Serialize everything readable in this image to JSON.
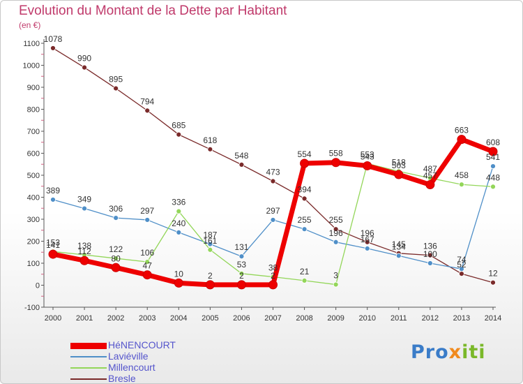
{
  "title": "Evolution du Montant de la Dette par Habitant",
  "subtitle": "(en €)",
  "logo": {
    "text": "Proxiti"
  },
  "colors": {
    "HéNENCOURT": "#ee0000",
    "Laviéville": "#4f8fc8",
    "Millencourt": "#93d659",
    "Bresle": "#7a2a2a",
    "title": "#c03a6b",
    "legend_text": "#5555cc"
  },
  "chart_data": {
    "type": "line",
    "title": "Evolution du Montant de la Dette par Habitant",
    "ylabel": "(en €)",
    "x": [
      "2000",
      "2001",
      "2002",
      "2003",
      "2004",
      "2005",
      "2006",
      "2007",
      "2008",
      "2009",
      "2010",
      "2011",
      "2012",
      "2013",
      "2014"
    ],
    "ylim": [
      -100,
      1100
    ],
    "yticks": [
      -100,
      0,
      100,
      200,
      300,
      400,
      500,
      600,
      700,
      800,
      900,
      1000,
      1100
    ],
    "grid": false,
    "legend": "bottom-left",
    "series": [
      {
        "name": "HéNENCOURT",
        "color": "#ee0000",
        "values": [
          141,
          112,
          80,
          47,
          10,
          2,
          2,
          2,
          554,
          558,
          543,
          503,
          457,
          663,
          608
        ]
      },
      {
        "name": "Laviéville",
        "color": "#4f8fc8",
        "values": [
          389,
          349,
          306,
          297,
          240,
          187,
          131,
          297,
          255,
          196,
          167,
          134,
          100,
          74,
          541
        ]
      },
      {
        "name": "Millencourt",
        "color": "#93d659",
        "values": [
          153,
          138,
          122,
          106,
          336,
          161,
          53,
          38,
          21,
          3,
          553,
          518,
          487,
          458,
          448
        ]
      },
      {
        "name": "Bresle",
        "color": "#7a2a2a",
        "values": [
          1078,
          990,
          895,
          794,
          685,
          618,
          548,
          473,
          394,
          255,
          196,
          145,
          136,
          52,
          12
        ]
      }
    ]
  }
}
